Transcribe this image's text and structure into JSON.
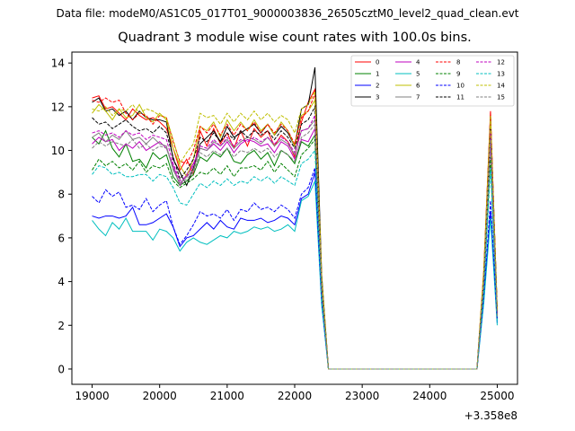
{
  "figure": {
    "suptitle": "Data file: modeM0/AS1C05_017T01_9000003836_26505cztM0_level2_quad_clean.evt",
    "title": "Quadrant 3 module wise count rates with 100.0s bins.",
    "offset_label": "+3.358e8"
  },
  "chart_data": {
    "type": "line",
    "title": "Quadrant 3 module wise count rates with 100.0s bins.",
    "xlabel": "",
    "ylabel": "",
    "x_offset": 335800000,
    "xlim": [
      18700,
      25300
    ],
    "ylim": [
      -0.7,
      14.5
    ],
    "xticks": [
      19000,
      20000,
      21000,
      22000,
      23000,
      24000,
      25000
    ],
    "yticks": [
      0,
      2,
      4,
      6,
      8,
      10,
      12,
      14
    ],
    "grid": false,
    "legend_position": "top-right",
    "x": [
      19000,
      19100,
      19200,
      19300,
      19400,
      19500,
      19600,
      19700,
      19800,
      19900,
      20000,
      20100,
      20200,
      20300,
      20400,
      20500,
      20600,
      20700,
      20800,
      20900,
      21000,
      21100,
      21200,
      21300,
      21400,
      21500,
      21600,
      21700,
      21800,
      21900,
      22000,
      22100,
      22200,
      22300,
      22400,
      22500,
      22600,
      22700,
      22800,
      22900,
      23000,
      23100,
      23200,
      23300,
      23400,
      23500,
      23600,
      23700,
      23800,
      23900,
      24000,
      24100,
      24200,
      24300,
      24400,
      24500,
      24600,
      24700,
      24800,
      24900,
      25000
    ],
    "series": [
      {
        "name": "0",
        "color": "#ff0000",
        "dash": "solid",
        "values": [
          12.4,
          12.5,
          11.9,
          12.0,
          11.7,
          11.4,
          11.9,
          11.6,
          11.4,
          11.5,
          11.3,
          11.0,
          10.1,
          9.1,
          9.6,
          8.9,
          10.9,
          10.2,
          11.0,
          10.3,
          10.8,
          10.1,
          10.9,
          10.2,
          11.0,
          10.6,
          10.9,
          10.2,
          10.7,
          10.4,
          9.7,
          11.3,
          12.2,
          12.8,
          4.0,
          0,
          0,
          0,
          0,
          0,
          0,
          0,
          0,
          0,
          0,
          0,
          0,
          0,
          0,
          0,
          0,
          0,
          0,
          0,
          0,
          0,
          0,
          0,
          4.5,
          11.8,
          2.6
        ]
      },
      {
        "name": "1",
        "color": "#008000",
        "dash": "solid",
        "values": [
          10.6,
          10.3,
          10.9,
          10.1,
          9.7,
          10.3,
          9.5,
          9.6,
          9.2,
          9.9,
          9.6,
          9.8,
          8.8,
          8.4,
          8.6,
          8.9,
          9.7,
          9.5,
          9.9,
          9.7,
          10.1,
          9.5,
          9.4,
          9.8,
          10.0,
          9.6,
          9.9,
          9.3,
          10.0,
          9.8,
          9.4,
          10.4,
          10.2,
          10.7,
          3.6,
          0,
          0,
          0,
          0,
          0,
          0,
          0,
          0,
          0,
          0,
          0,
          0,
          0,
          0,
          0,
          0,
          0,
          0,
          0,
          0,
          0,
          0,
          0,
          4.0,
          10.6,
          2.4
        ]
      },
      {
        "name": "2",
        "color": "#0000ff",
        "dash": "solid",
        "values": [
          7.0,
          6.9,
          7.0,
          7.0,
          6.9,
          7.0,
          7.4,
          6.6,
          6.6,
          6.7,
          6.9,
          7.1,
          6.5,
          5.6,
          6.0,
          6.1,
          6.4,
          6.7,
          6.4,
          6.8,
          6.5,
          6.4,
          6.9,
          6.8,
          6.8,
          6.9,
          6.7,
          6.8,
          7.0,
          6.9,
          6.6,
          7.8,
          8.0,
          9.0,
          3.1,
          0,
          0,
          0,
          0,
          0,
          0,
          0,
          0,
          0,
          0,
          0,
          0,
          0,
          0,
          0,
          0,
          0,
          0,
          0,
          0,
          0,
          0,
          0,
          3.2,
          7.2,
          2.1
        ]
      },
      {
        "name": "3",
        "color": "#000000",
        "dash": "solid",
        "values": [
          12.2,
          12.4,
          11.8,
          11.9,
          11.6,
          11.8,
          11.4,
          11.8,
          11.5,
          11.4,
          11.4,
          11.3,
          9.6,
          9.0,
          8.4,
          9.2,
          10.3,
          10.6,
          10.9,
          10.4,
          11.1,
          10.6,
          10.8,
          11.0,
          11.2,
          10.8,
          11.2,
          10.7,
          11.1,
          10.8,
          10.2,
          11.9,
          12.1,
          13.8,
          4.3,
          0,
          0,
          0,
          0,
          0,
          0,
          0,
          0,
          0,
          0,
          0,
          0,
          0,
          0,
          0,
          0,
          0,
          0,
          0,
          0,
          0,
          0,
          0,
          4.3,
          11.6,
          2.7
        ]
      },
      {
        "name": "4",
        "color": "#bf00bf",
        "dash": "solid",
        "values": [
          10.3,
          10.6,
          10.4,
          10.5,
          10.0,
          10.3,
          10.1,
          10.4,
          10.0,
          10.2,
          10.4,
          10.1,
          9.3,
          8.4,
          8.9,
          9.4,
          10.1,
          10.0,
          10.3,
          10.0,
          10.4,
          9.9,
          10.3,
          10.5,
          10.4,
          10.2,
          10.3,
          9.9,
          10.4,
          10.2,
          9.6,
          10.5,
          10.4,
          11.0,
          3.5,
          0,
          0,
          0,
          0,
          0,
          0,
          0,
          0,
          0,
          0,
          0,
          0,
          0,
          0,
          0,
          0,
          0,
          0,
          0,
          0,
          0,
          0,
          0,
          4.0,
          10.4,
          2.5
        ]
      },
      {
        "name": "5",
        "color": "#00bfbf",
        "dash": "solid",
        "values": [
          6.8,
          6.4,
          6.1,
          6.7,
          6.4,
          6.9,
          6.3,
          6.3,
          6.3,
          5.9,
          6.4,
          6.3,
          6.0,
          5.4,
          5.8,
          6.0,
          5.8,
          5.7,
          5.9,
          6.1,
          6.0,
          6.3,
          6.2,
          6.3,
          6.5,
          6.4,
          6.5,
          6.3,
          6.4,
          6.6,
          6.3,
          7.7,
          7.9,
          8.6,
          2.9,
          0,
          0,
          0,
          0,
          0,
          0,
          0,
          0,
          0,
          0,
          0,
          0,
          0,
          0,
          0,
          0,
          0,
          0,
          0,
          0,
          0,
          0,
          0,
          3.0,
          6.9,
          2.0
        ]
      },
      {
        "name": "6",
        "color": "#bfbf00",
        "dash": "solid",
        "values": [
          11.7,
          12.1,
          11.8,
          11.4,
          11.9,
          11.5,
          11.6,
          12.1,
          11.5,
          11.3,
          11.7,
          11.4,
          10.1,
          9.3,
          8.8,
          9.6,
          11.1,
          10.9,
          11.3,
          10.6,
          11.4,
          10.9,
          11.3,
          10.9,
          11.4,
          10.9,
          11.2,
          10.7,
          11.3,
          10.9,
          10.2,
          11.6,
          11.8,
          12.3,
          4.1,
          0,
          0,
          0,
          0,
          0,
          0,
          0,
          0,
          0,
          0,
          0,
          0,
          0,
          0,
          0,
          0,
          0,
          0,
          0,
          0,
          0,
          0,
          0,
          4.4,
          11.5,
          2.7
        ]
      },
      {
        "name": "7",
        "color": "#808080",
        "dash": "solid",
        "values": [
          10.6,
          10.8,
          10.4,
          10.7,
          10.5,
          10.9,
          10.5,
          10.6,
          10.3,
          10.6,
          10.3,
          10.2,
          9.1,
          8.5,
          8.8,
          9.1,
          10.1,
          10.0,
          10.4,
          10.2,
          10.5,
          10.1,
          10.4,
          10.6,
          10.5,
          10.3,
          10.6,
          10.2,
          10.5,
          10.3,
          9.8,
          10.9,
          11.0,
          11.4,
          3.7,
          0,
          0,
          0,
          0,
          0,
          0,
          0,
          0,
          0,
          0,
          0,
          0,
          0,
          0,
          0,
          0,
          0,
          0,
          0,
          0,
          0,
          0,
          0,
          4.1,
          10.8,
          2.5
        ]
      },
      {
        "name": "8",
        "color": "#ff0000",
        "dash": "dashed",
        "values": [
          12.3,
          12.2,
          12.4,
          12.2,
          12.3,
          11.7,
          11.4,
          11.7,
          11.6,
          11.2,
          11.6,
          11.5,
          10.4,
          9.5,
          9.4,
          10.0,
          11.1,
          10.8,
          11.2,
          10.7,
          11.2,
          10.7,
          11.2,
          10.9,
          11.3,
          10.8,
          11.2,
          10.8,
          11.2,
          10.9,
          10.3,
          11.5,
          11.8,
          12.6,
          4.1,
          0,
          0,
          0,
          0,
          0,
          0,
          0,
          0,
          0,
          0,
          0,
          0,
          0,
          0,
          0,
          0,
          0,
          0,
          0,
          0,
          0,
          0,
          0,
          4.4,
          11.7,
          2.6
        ]
      },
      {
        "name": "9",
        "color": "#008000",
        "dash": "dashed",
        "values": [
          9.1,
          9.6,
          9.3,
          9.5,
          9.2,
          9.4,
          9.1,
          9.5,
          9.0,
          9.3,
          9.2,
          9.4,
          8.6,
          8.3,
          8.5,
          8.7,
          9.0,
          8.9,
          9.2,
          8.9,
          9.3,
          8.8,
          9.2,
          9.2,
          9.3,
          9.1,
          9.5,
          9.0,
          9.4,
          9.1,
          8.8,
          9.8,
          10.1,
          10.5,
          3.3,
          0,
          0,
          0,
          0,
          0,
          0,
          0,
          0,
          0,
          0,
          0,
          0,
          0,
          0,
          0,
          0,
          0,
          0,
          0,
          0,
          0,
          0,
          0,
          3.6,
          9.7,
          2.3
        ]
      },
      {
        "name": "10",
        "color": "#0000ff",
        "dash": "dashed",
        "values": [
          7.9,
          7.6,
          8.2,
          7.9,
          8.1,
          7.4,
          7.5,
          7.3,
          7.8,
          7.2,
          7.5,
          7.7,
          6.5,
          5.7,
          6.1,
          6.6,
          7.2,
          7.0,
          7.1,
          6.9,
          7.3,
          6.8,
          7.3,
          7.2,
          7.6,
          7.3,
          7.4,
          7.2,
          7.5,
          7.3,
          6.9,
          8.0,
          8.3,
          9.2,
          3.1,
          0,
          0,
          0,
          0,
          0,
          0,
          0,
          0,
          0,
          0,
          0,
          0,
          0,
          0,
          0,
          0,
          0,
          0,
          0,
          0,
          0,
          0,
          0,
          3.3,
          7.7,
          2.2
        ]
      },
      {
        "name": "11",
        "color": "#000000",
        "dash": "dashed",
        "values": [
          11.5,
          11.2,
          11.3,
          11.0,
          11.2,
          11.4,
          11.1,
          10.9,
          11.0,
          10.8,
          11.1,
          10.8,
          9.7,
          8.7,
          9.1,
          9.6,
          10.6,
          10.4,
          10.8,
          10.4,
          10.8,
          10.5,
          10.9,
          10.6,
          10.9,
          10.7,
          10.9,
          10.5,
          10.9,
          10.6,
          10.1,
          11.2,
          11.4,
          12.0,
          3.9,
          0,
          0,
          0,
          0,
          0,
          0,
          0,
          0,
          0,
          0,
          0,
          0,
          0,
          0,
          0,
          0,
          0,
          0,
          0,
          0,
          0,
          0,
          0,
          4.2,
          11.0,
          2.6
        ]
      },
      {
        "name": "12",
        "color": "#bf00bf",
        "dash": "dashed",
        "values": [
          10.8,
          10.9,
          10.7,
          10.8,
          10.6,
          10.9,
          10.7,
          10.8,
          10.5,
          10.7,
          10.6,
          10.5,
          9.4,
          8.6,
          8.8,
          9.3,
          10.2,
          10.1,
          10.5,
          10.2,
          10.6,
          10.2,
          10.5,
          10.4,
          10.6,
          10.4,
          10.6,
          10.3,
          10.6,
          10.4,
          9.9,
          10.9,
          11.0,
          11.6,
          3.7,
          0,
          0,
          0,
          0,
          0,
          0,
          0,
          0,
          0,
          0,
          0,
          0,
          0,
          0,
          0,
          0,
          0,
          0,
          0,
          0,
          0,
          0,
          0,
          4.1,
          10.9,
          2.5
        ]
      },
      {
        "name": "13",
        "color": "#00bfbf",
        "dash": "dashed",
        "values": [
          8.9,
          9.3,
          9.2,
          8.9,
          9.0,
          8.8,
          8.8,
          8.9,
          8.9,
          8.6,
          8.9,
          8.8,
          8.3,
          7.6,
          7.5,
          8.0,
          8.5,
          8.3,
          8.6,
          8.4,
          8.7,
          8.4,
          8.6,
          8.5,
          8.8,
          8.6,
          8.8,
          8.5,
          8.8,
          8.6,
          8.4,
          9.4,
          9.6,
          10.0,
          3.2,
          0,
          0,
          0,
          0,
          0,
          0,
          0,
          0,
          0,
          0,
          0,
          0,
          0,
          0,
          0,
          0,
          0,
          0,
          0,
          0,
          0,
          0,
          0,
          3.5,
          9.2,
          2.2
        ]
      },
      {
        "name": "14",
        "color": "#bfbf00",
        "dash": "dashed",
        "values": [
          11.9,
          11.8,
          12.0,
          11.6,
          11.9,
          11.8,
          12.1,
          11.7,
          11.9,
          11.8,
          11.6,
          11.5,
          10.5,
          9.4,
          9.9,
          10.3,
          11.7,
          11.5,
          11.6,
          11.2,
          11.7,
          11.3,
          11.7,
          11.4,
          11.8,
          11.4,
          11.7,
          11.3,
          11.6,
          11.4,
          10.8,
          11.9,
          12.1,
          12.7,
          4.2,
          0,
          0,
          0,
          0,
          0,
          0,
          0,
          0,
          0,
          0,
          0,
          0,
          0,
          0,
          0,
          0,
          0,
          0,
          0,
          0,
          0,
          0,
          0,
          4.5,
          11.6,
          2.7
        ]
      },
      {
        "name": "15",
        "color": "#808080",
        "dash": "dashed",
        "values": [
          10.1,
          10.4,
          10.2,
          10.4,
          10.3,
          10.2,
          10.5,
          10.1,
          10.3,
          10.0,
          10.2,
          10.1,
          9.2,
          8.4,
          8.7,
          9.0,
          9.9,
          9.7,
          10.0,
          9.8,
          10.1,
          9.7,
          10.0,
          9.9,
          10.1,
          9.9,
          10.1,
          9.7,
          10.0,
          9.8,
          9.5,
          10.6,
          10.8,
          11.2,
          3.6,
          0,
          0,
          0,
          0,
          0,
          0,
          0,
          0,
          0,
          0,
          0,
          0,
          0,
          0,
          0,
          0,
          0,
          0,
          0,
          0,
          0,
          0,
          0,
          3.9,
          10.5,
          2.4
        ]
      }
    ]
  }
}
